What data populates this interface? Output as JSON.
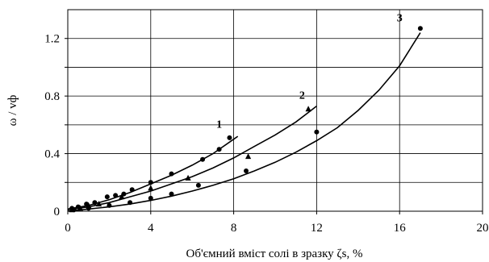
{
  "chart_data": {
    "type": "scatter",
    "xlabel": "Об'ємний вміст солі в зразку ζs, %",
    "ylabel": "ω / vф",
    "xlim": [
      0,
      20
    ],
    "ylim": [
      0,
      1.4
    ],
    "x_ticks": [
      "0",
      "4",
      "8",
      "12",
      "16",
      "20"
    ],
    "y_ticks": [
      "0",
      "0.4",
      "0.8",
      "1.2"
    ],
    "x_tick_values": [
      0,
      4,
      8,
      12,
      16,
      20
    ],
    "y_tick_values": [
      0,
      0.4,
      0.8,
      1.2
    ],
    "grid": true,
    "series": [
      {
        "name": "1",
        "marker": "circle",
        "points": [
          [
            0.2,
            0.02
          ],
          [
            0.5,
            0.03
          ],
          [
            0.9,
            0.05
          ],
          [
            1.3,
            0.06
          ],
          [
            1.9,
            0.1
          ],
          [
            2.3,
            0.11
          ],
          [
            2.7,
            0.12
          ],
          [
            3.1,
            0.15
          ],
          [
            4.0,
            0.2
          ],
          [
            5.0,
            0.26
          ],
          [
            6.5,
            0.36
          ],
          [
            7.3,
            0.43
          ],
          [
            7.8,
            0.51
          ]
        ],
        "fit": [
          [
            0,
            0.015
          ],
          [
            1,
            0.04
          ],
          [
            2,
            0.08
          ],
          [
            3,
            0.13
          ],
          [
            4,
            0.19
          ],
          [
            5,
            0.25
          ],
          [
            6,
            0.32
          ],
          [
            7,
            0.4
          ],
          [
            8,
            0.5
          ],
          [
            8.2,
            0.52
          ]
        ]
      },
      {
        "name": "2",
        "marker": "triangle",
        "points": [
          [
            0.2,
            0.01
          ],
          [
            0.6,
            0.02
          ],
          [
            1.0,
            0.04
          ],
          [
            1.5,
            0.05
          ],
          [
            2.6,
            0.1
          ],
          [
            4.0,
            0.16
          ],
          [
            5.8,
            0.23
          ],
          [
            8.7,
            0.38
          ],
          [
            11.6,
            0.71
          ]
        ],
        "fit": [
          [
            0,
            0.01
          ],
          [
            1,
            0.03
          ],
          [
            2,
            0.06
          ],
          [
            3,
            0.1
          ],
          [
            4,
            0.14
          ],
          [
            5,
            0.19
          ],
          [
            6,
            0.24
          ],
          [
            7,
            0.3
          ],
          [
            8,
            0.37
          ],
          [
            9,
            0.45
          ],
          [
            10,
            0.53
          ],
          [
            11,
            0.62
          ],
          [
            12,
            0.73
          ]
        ]
      },
      {
        "name": "3",
        "marker": "circle",
        "points": [
          [
            0.3,
            0.01
          ],
          [
            1.0,
            0.02
          ],
          [
            2.0,
            0.04
          ],
          [
            3.0,
            0.06
          ],
          [
            4.0,
            0.09
          ],
          [
            5.0,
            0.12
          ],
          [
            6.3,
            0.18
          ],
          [
            8.6,
            0.28
          ],
          [
            12.0,
            0.55
          ],
          [
            17.0,
            1.27
          ]
        ],
        "fit": [
          [
            0,
            0.0
          ],
          [
            1,
            0.015
          ],
          [
            2,
            0.03
          ],
          [
            3,
            0.05
          ],
          [
            4,
            0.075
          ],
          [
            5,
            0.105
          ],
          [
            6,
            0.14
          ],
          [
            7,
            0.18
          ],
          [
            8,
            0.225
          ],
          [
            9,
            0.28
          ],
          [
            10,
            0.34
          ],
          [
            11,
            0.41
          ],
          [
            12,
            0.49
          ],
          [
            13,
            0.58
          ],
          [
            14,
            0.7
          ],
          [
            15,
            0.84
          ],
          [
            16,
            1.01
          ],
          [
            17,
            1.24
          ]
        ]
      }
    ]
  }
}
